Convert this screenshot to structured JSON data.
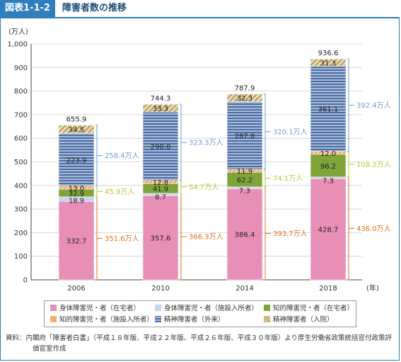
{
  "header": {
    "fig_id": "図表1-1-2",
    "title": "障害者数の推移"
  },
  "colors": {
    "home_physical": "#e88fb8",
    "facility_physical": "#c8d5ef",
    "home_intellectual": "#7fa43a",
    "facility_intellectual": "#f08c3c",
    "mental_outpatient": "#4a6fa5",
    "mental_inpatient": "#d8c79a",
    "bracket_physical": "#e07020",
    "bracket_intellectual": "#b7c933",
    "bracket_mental": "#6a9fd8"
  },
  "chart_data": {
    "type": "bar",
    "stacked": true,
    "ylabel": "(万人)",
    "xlabel": "(年)",
    "ylim": [
      0,
      1000
    ],
    "yticks": [
      "0",
      "100",
      "200",
      "300",
      "400",
      "500",
      "600",
      "700",
      "800",
      "900",
      "1,000"
    ],
    "categories": [
      "2006",
      "2010",
      "2014",
      "2018"
    ],
    "series": [
      {
        "name": "身体障害児・者（在宅者）",
        "values": [
          332.7,
          357.6,
          386.4,
          428.7
        ],
        "labels": [
          "332.7",
          "357.6",
          "386.4",
          "428.7"
        ]
      },
      {
        "name": "身体障害児・者（施設入所者）",
        "values": [
          18.9,
          8.7,
          7.3,
          7.3
        ],
        "labels": [
          "18.9",
          "8.7",
          "7.3",
          "7.3"
        ]
      },
      {
        "name": "知的障害児・者（在宅者）",
        "values": [
          32.9,
          41.9,
          62.2,
          96.2
        ],
        "labels": [
          "32.9",
          "41.9",
          "62.2",
          "96.2"
        ]
      },
      {
        "name": "知的障害児・者（施設入所者）",
        "values": [
          13.0,
          12.8,
          11.9,
          12.0
        ],
        "labels": [
          "13.0",
          "12.8",
          "11.9",
          "12.0"
        ]
      },
      {
        "name": "精神障害者（外来）",
        "values": [
          223.9,
          290.0,
          287.8,
          361.1
        ],
        "labels": [
          "223.9",
          "290.0",
          "287.8",
          "361.1"
        ]
      },
      {
        "name": "精神障害者（入院）",
        "values": [
          34.5,
          33.3,
          32.3,
          31.3
        ],
        "labels": [
          "34.5",
          "33.3",
          "32.3",
          "31.3"
        ]
      }
    ],
    "totals": [
      "655.9",
      "744.3",
      "787.9",
      "936.6"
    ],
    "bracket_labels": {
      "physical": [
        "351.6万人",
        "366.3万人",
        "393.7万人",
        "436.0万人"
      ],
      "intellectual": [
        "45.9万人",
        "54.7万人",
        "74.1万人",
        "108.2万人"
      ],
      "mental": [
        "258.4万人",
        "323.3万人",
        "320.1万人",
        "392.4万人"
      ]
    }
  },
  "legend": {
    "items": [
      "身体障害児・者（在宅者）",
      "身体障害児・者（施設入所者）",
      "知的障害児・者（在宅者）",
      "知的障害児・者（施設入所者）",
      "精神障害者（外来）",
      "精神障害者（入院）"
    ]
  },
  "source": {
    "line1": "資料：内閣府「障害者白書」（平成１８年版、平成２２年版、平成２６年版、平成３０年版）より厚生労働省政策統括官付政策評",
    "line2": "価官室作成"
  }
}
